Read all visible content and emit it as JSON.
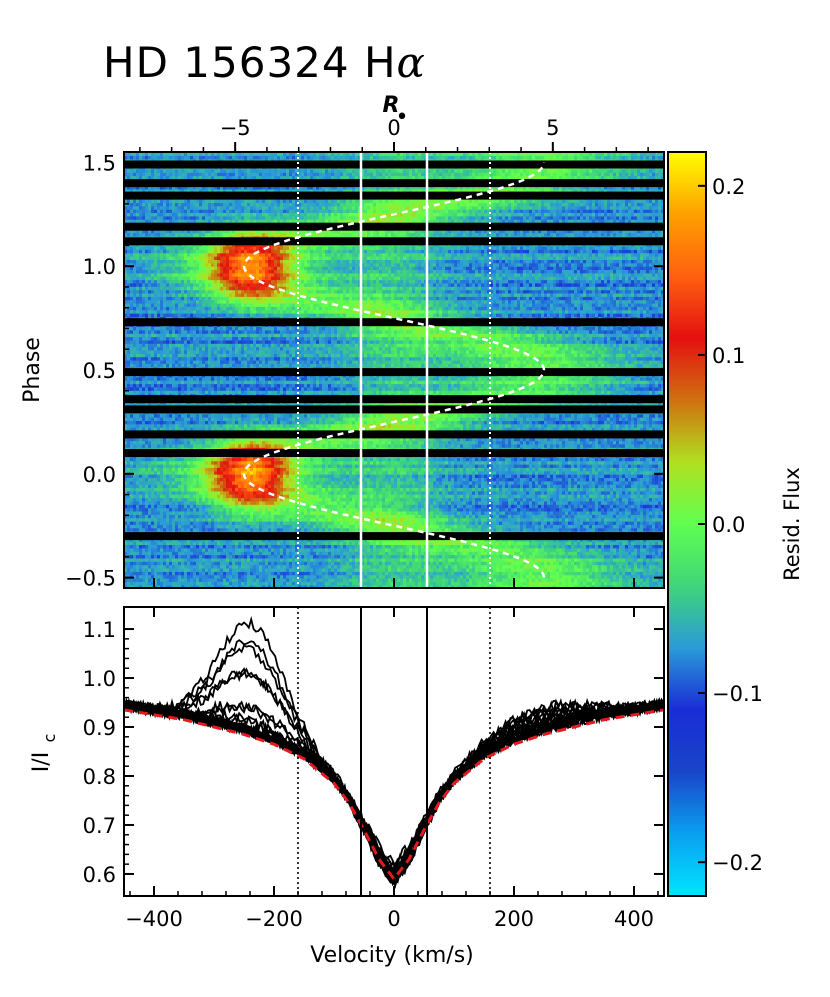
{
  "title": {
    "text": "HD 156324 H",
    "symbol": "α"
  },
  "top_axis": {
    "label": "R",
    "subscript": "•",
    "ticks": [
      -5,
      0,
      5
    ],
    "range": [
      -8.5,
      8.5
    ]
  },
  "colorbar": {
    "label": "Resid. Flux",
    "ticks": [
      "0.2",
      "0.1",
      "0.0",
      "−0.1",
      "−0.2"
    ],
    "tick_values": [
      0.2,
      0.1,
      0.0,
      -0.1,
      -0.2
    ],
    "range": [
      -0.22,
      0.22
    ],
    "colors": [
      "#00e5ff",
      "#0aa0f0",
      "#1846c8",
      "#1a2cd6",
      "#2a9ad8",
      "#3fd57a",
      "#60ff50",
      "#b0e020",
      "#d07010",
      "#e41010",
      "#ff6010",
      "#ffa000",
      "#ffff00"
    ]
  },
  "chart_data": [
    {
      "type": "heatmap",
      "ylabel": "Phase",
      "xlim": [
        -450,
        450
      ],
      "ylim": [
        -0.55,
        1.55
      ],
      "yticks": [
        "−0.5",
        "0.0",
        "0.5",
        "1.0",
        "1.5"
      ],
      "ytick_values": [
        -0.5,
        0.0,
        0.5,
        1.0,
        1.5
      ],
      "gap_phases": [
        1.49,
        1.4,
        1.34,
        1.19,
        1.12,
        0.73,
        0.49,
        0.36,
        0.31,
        0.19,
        0.1,
        -0.3
      ],
      "emission_peak_phase": [
        0.0,
        1.0
      ],
      "emission_peak_velocity": -240,
      "sine_curve": {
        "amplitude_velocity": 250,
        "mean_velocity": 0,
        "phase_of_max_velocity": 0.5,
        "style": "white dashed"
      },
      "vertical_lines": [
        {
          "x": -55,
          "style": "white solid"
        },
        {
          "x": 55,
          "style": "white solid"
        },
        {
          "x": -160,
          "style": "white dotted"
        },
        {
          "x": 160,
          "style": "white dotted"
        }
      ]
    },
    {
      "type": "line",
      "xlabel": "Velocity (km/s)",
      "ylabel": "I/I",
      "ylabel_subscript": "c",
      "xlim": [
        -450,
        450
      ],
      "ylim": [
        0.555,
        1.145
      ],
      "xticks": [
        "−400",
        "−200",
        "0",
        "200",
        "400"
      ],
      "xtick_values": [
        -400,
        -200,
        0,
        200,
        400
      ],
      "yticks": [
        "0.6",
        "0.7",
        "0.8",
        "0.9",
        "1.0",
        "1.1"
      ],
      "ytick_values": [
        0.6,
        0.7,
        0.8,
        0.9,
        1.0,
        1.1
      ],
      "model_profile": {
        "color": "#e41a1c",
        "style": "dashed",
        "x": [
          -450,
          -400,
          -350,
          -300,
          -250,
          -200,
          -150,
          -100,
          -75,
          -50,
          -25,
          0,
          25,
          50,
          75,
          100,
          150,
          200,
          250,
          300,
          350,
          400,
          450
        ],
        "y": [
          0.935,
          0.925,
          0.915,
          0.9,
          0.885,
          0.865,
          0.835,
          0.785,
          0.745,
          0.69,
          0.63,
          0.59,
          0.63,
          0.69,
          0.745,
          0.785,
          0.835,
          0.865,
          0.885,
          0.9,
          0.915,
          0.925,
          0.935
        ]
      },
      "observed_profiles": {
        "color": "#000000",
        "count": 22,
        "peak_max": 1.1,
        "peak_velocity": -240,
        "red_bump_max": 0.96,
        "red_bump_velocity": 240
      },
      "vertical_lines": [
        {
          "x": -55,
          "style": "black solid"
        },
        {
          "x": 55,
          "style": "black solid"
        },
        {
          "x": -160,
          "style": "black dotted"
        },
        {
          "x": 160,
          "style": "black dotted"
        }
      ]
    }
  ]
}
